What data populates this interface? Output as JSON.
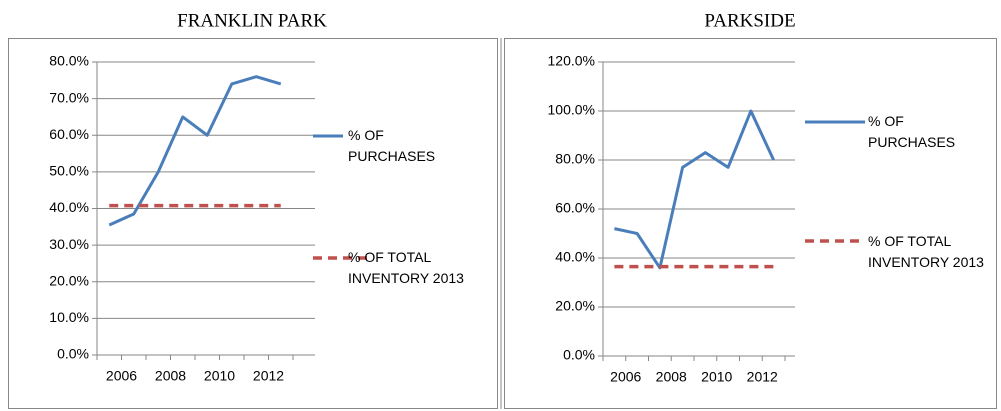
{
  "chart_data": [
    {
      "type": "line",
      "title": "FRANKLIN PARK",
      "categories": [
        "2006",
        null,
        "2008",
        null,
        "2010",
        null,
        "2012",
        null
      ],
      "series": [
        {
          "name": "% OF PURCHASES",
          "color": "#4a7ebb",
          "dash": false,
          "values": [
            35.5,
            38.5,
            50,
            65,
            60,
            74,
            76,
            74
          ]
        },
        {
          "name": "% OF TOTAL INVENTORY 2013",
          "color": "#c0504d",
          "dash": true,
          "values": [
            40.8,
            40.8,
            40.8,
            40.8,
            40.8,
            40.8,
            40.8,
            40.8
          ]
        }
      ],
      "ylim": [
        0,
        80
      ],
      "yticks": [
        {
          "value": 0,
          "label": "0.0%"
        },
        {
          "value": 10,
          "label": "10.0%"
        },
        {
          "value": 20,
          "label": "20.0%"
        },
        {
          "value": 30,
          "label": "30.0%"
        },
        {
          "value": 40,
          "label": "40.0%"
        },
        {
          "value": 50,
          "label": "50.0%"
        },
        {
          "value": 60,
          "label": "60.0%"
        },
        {
          "value": 70,
          "label": "70.0%"
        },
        {
          "value": 80,
          "label": "80.0%"
        }
      ],
      "grid": true,
      "legend": "right"
    },
    {
      "type": "line",
      "title": "PARKSIDE",
      "categories": [
        "2006",
        null,
        "2008",
        null,
        "2010",
        null,
        "2012",
        null
      ],
      "series": [
        {
          "name": "% OF PURCHASES",
          "color": "#4a7ebb",
          "dash": false,
          "values": [
            52,
            50,
            36,
            77,
            83,
            77,
            100,
            80
          ]
        },
        {
          "name": "% OF TOTAL INVENTORY 2013",
          "color": "#c0504d",
          "dash": true,
          "values": [
            36.5,
            36.5,
            36.5,
            36.5,
            36.5,
            36.5,
            36.5,
            36.5
          ]
        }
      ],
      "ylim": [
        0,
        120
      ],
      "yticks": [
        {
          "value": 0,
          "label": "0.0%"
        },
        {
          "value": 20,
          "label": "20.0%"
        },
        {
          "value": 40,
          "label": "40.0%"
        },
        {
          "value": 60,
          "label": "60.0%"
        },
        {
          "value": 80,
          "label": "80.0%"
        },
        {
          "value": 100,
          "label": "100.0%"
        },
        {
          "value": 120,
          "label": "120.0%"
        }
      ],
      "grid": true,
      "legend": "right"
    }
  ]
}
